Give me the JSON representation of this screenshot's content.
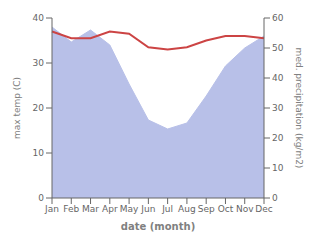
{
  "chart_data": {
    "type": "line",
    "xlabel": "date (month)",
    "ylabel": "max temp (C)",
    "y2label": "med. precipitation (kg/m2)",
    "categories": [
      "Jan",
      "Feb",
      "Mar",
      "Apr",
      "May",
      "Jun",
      "Jul",
      "Aug",
      "Sep",
      "Oct",
      "Nov",
      "Dec"
    ],
    "series": [
      {
        "type": "area",
        "axis": "y2",
        "color": "#b8c0e8",
        "values": [
          57.0,
          52.0,
          56.0,
          51.0,
          38.0,
          26.0,
          23.0,
          25.0,
          34.0,
          44.0,
          50.0,
          54.0
        ]
      },
      {
        "type": "line",
        "color": "#cc4444",
        "values": [
          37.0,
          35.5,
          35.5,
          37.0,
          36.5,
          33.5,
          33.0,
          33.5,
          35.0,
          36.0,
          36.0,
          35.5
        ]
      }
    ],
    "ylim": [
      0,
      40
    ],
    "yticks": [
      0,
      10,
      20,
      30,
      40
    ],
    "y2lim": [
      0,
      60
    ],
    "y2ticks": [
      0,
      10,
      20,
      30,
      40,
      50,
      60
    ],
    "grid": false
  }
}
